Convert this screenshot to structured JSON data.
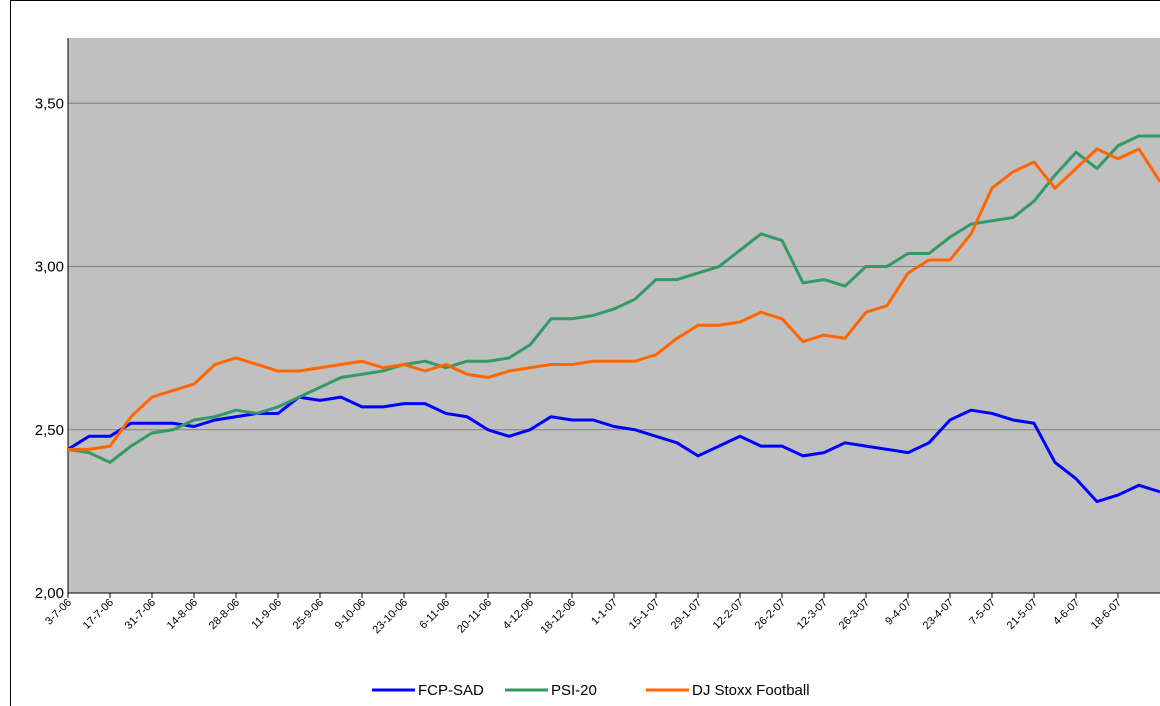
{
  "chart_data": {
    "type": "line",
    "categories": [
      "3-7-06",
      null,
      "17-7-06",
      null,
      "31-7-06",
      null,
      "14-8-06",
      null,
      "28-8-06",
      null,
      "11-9-06",
      null,
      "25-9-06",
      null,
      "9-10-06",
      null,
      "23-10-06",
      null,
      "6-11-06",
      null,
      "20-11-06",
      null,
      "4-12-06",
      null,
      "18-12-06",
      null,
      "1-1-07",
      null,
      "15-1-07",
      null,
      "29-1-07",
      null,
      "12-2-07",
      null,
      "26-2-07",
      null,
      "12-3-07",
      null,
      "26-3-07",
      null,
      "9-4-07",
      null,
      "23-4-07",
      null,
      "7-5-07",
      null,
      "21-5-07",
      null,
      "4-6-07",
      null,
      "18-6-07",
      null,
      null
    ],
    "series": [
      {
        "name": "FCP-SAD",
        "color": "#0000ff",
        "values": [
          2.44,
          2.48,
          2.48,
          2.52,
          2.52,
          2.52,
          2.51,
          2.53,
          2.54,
          2.55,
          2.55,
          2.6,
          2.59,
          2.6,
          2.57,
          2.57,
          2.58,
          2.58,
          2.55,
          2.54,
          2.5,
          2.48,
          2.5,
          2.54,
          2.53,
          2.53,
          2.51,
          2.5,
          2.48,
          2.46,
          2.42,
          2.45,
          2.48,
          2.45,
          2.45,
          2.42,
          2.43,
          2.46,
          2.45,
          2.44,
          2.43,
          2.46,
          2.53,
          2.56,
          2.55,
          2.53,
          2.52,
          2.4,
          2.35,
          2.28,
          2.3,
          2.33,
          2.31
        ]
      },
      {
        "name": "PSI-20",
        "color": "#339966",
        "values": [
          2.44,
          2.43,
          2.4,
          2.45,
          2.49,
          2.5,
          2.53,
          2.54,
          2.56,
          2.55,
          2.57,
          2.6,
          2.63,
          2.66,
          2.67,
          2.68,
          2.7,
          2.71,
          2.69,
          2.71,
          2.71,
          2.72,
          2.76,
          2.84,
          2.84,
          2.85,
          2.87,
          2.9,
          2.96,
          2.96,
          2.98,
          3.0,
          3.05,
          3.1,
          3.08,
          2.95,
          2.96,
          2.94,
          3.0,
          3.0,
          3.04,
          3.04,
          3.09,
          3.13,
          3.14,
          3.15,
          3.2,
          3.28,
          3.35,
          3.3,
          3.37,
          3.4,
          3.4
        ]
      },
      {
        "name": "DJ Stoxx Football",
        "color": "#ff6600",
        "values": [
          2.44,
          2.44,
          2.45,
          2.54,
          2.6,
          2.62,
          2.64,
          2.7,
          2.72,
          2.7,
          2.68,
          2.68,
          2.69,
          2.7,
          2.71,
          2.69,
          2.7,
          2.68,
          2.7,
          2.67,
          2.66,
          2.68,
          2.69,
          2.7,
          2.7,
          2.71,
          2.71,
          2.71,
          2.73,
          2.78,
          2.82,
          2.82,
          2.83,
          2.86,
          2.84,
          2.77,
          2.79,
          2.78,
          2.86,
          2.88,
          2.98,
          3.02,
          3.02,
          3.1,
          3.24,
          3.29,
          3.32,
          3.24,
          3.3,
          3.36,
          3.33,
          3.36,
          3.26
        ]
      }
    ],
    "ylim": [
      2,
      3.7
    ],
    "yticks": [
      {
        "value": 2,
        "label": "2,00"
      },
      {
        "value": 2.5,
        "label": "2,50"
      },
      {
        "value": 3,
        "label": "3,00"
      },
      {
        "value": 3.5,
        "label": "3,50"
      }
    ],
    "grid": true,
    "plot_background": "#c0c0c0",
    "legend": "bottom"
  }
}
